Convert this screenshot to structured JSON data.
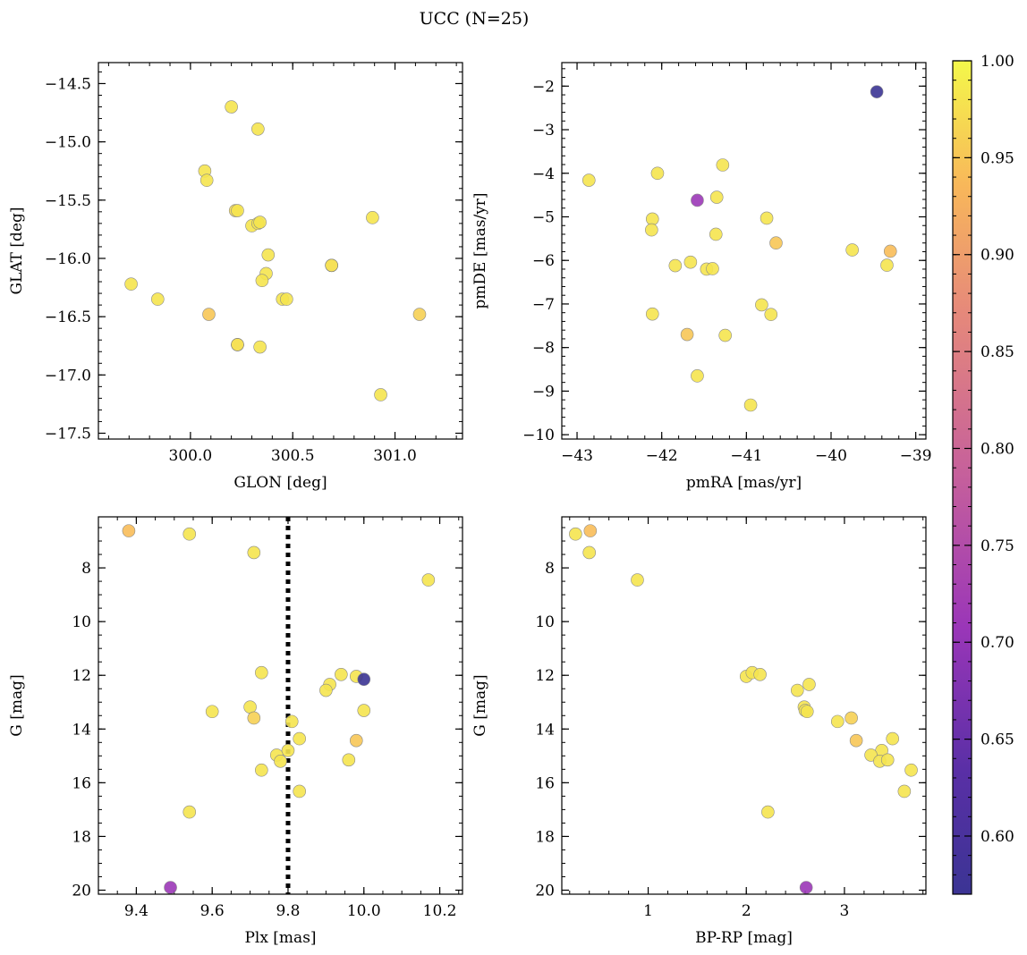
{
  "figure_title": "UCC (N=25)",
  "chart_data": [
    {
      "id": "gal",
      "type": "scatter",
      "xlabel": "GLON [deg]",
      "ylabel": "GLAT [deg]",
      "xlim": [
        299.55,
        301.33
      ],
      "ylim": [
        -17.55,
        -14.32
      ],
      "x_invert": false,
      "y_invert": false,
      "x_ticks": [
        {
          "v": 300.0,
          "l": "300.0"
        },
        {
          "v": 300.5,
          "l": "300.5"
        },
        {
          "v": 301.0,
          "l": "301.0"
        }
      ],
      "x_minor": 0.1,
      "y_ticks": [
        {
          "v": -17.5,
          "l": "−17.5"
        },
        {
          "v": -17.0,
          "l": "−17.0"
        },
        {
          "v": -16.5,
          "l": "−16.5"
        },
        {
          "v": -16.0,
          "l": "−16.0"
        },
        {
          "v": -15.5,
          "l": "−15.5"
        },
        {
          "v": -15.0,
          "l": "−15.0"
        },
        {
          "v": -14.5,
          "l": "−14.5"
        }
      ],
      "y_minor": 0.1,
      "points": [
        {
          "x": 300.2,
          "y": -14.7,
          "c": 0.98
        },
        {
          "x": 300.33,
          "y": -14.89,
          "c": 0.98
        },
        {
          "x": 300.07,
          "y": -15.25,
          "c": 0.98
        },
        {
          "x": 300.08,
          "y": -15.33,
          "c": 0.98
        },
        {
          "x": 300.22,
          "y": -15.59,
          "c": 0.97
        },
        {
          "x": 300.23,
          "y": -15.59,
          "c": 0.98
        },
        {
          "x": 300.3,
          "y": -15.72,
          "c": 0.98
        },
        {
          "x": 300.33,
          "y": -15.7,
          "c": 0.98
        },
        {
          "x": 300.34,
          "y": -15.69,
          "c": 0.98
        },
        {
          "x": 300.89,
          "y": -15.65,
          "c": 0.98
        },
        {
          "x": 300.38,
          "y": -15.97,
          "c": 0.98
        },
        {
          "x": 300.69,
          "y": -16.06,
          "c": 0.97
        },
        {
          "x": 300.37,
          "y": -16.13,
          "c": 0.98
        },
        {
          "x": 300.35,
          "y": -16.19,
          "c": 0.98
        },
        {
          "x": 299.71,
          "y": -16.22,
          "c": 0.98
        },
        {
          "x": 299.84,
          "y": -16.35,
          "c": 0.98
        },
        {
          "x": 300.45,
          "y": -16.35,
          "c": 0.98
        },
        {
          "x": 300.47,
          "y": -16.35,
          "c": 0.98
        },
        {
          "x": 300.09,
          "y": -16.48,
          "c": 0.95
        },
        {
          "x": 301.12,
          "y": -16.48,
          "c": 0.96
        },
        {
          "x": 300.23,
          "y": -16.74,
          "c": 0.97
        },
        {
          "x": 300.34,
          "y": -16.76,
          "c": 0.98
        },
        {
          "x": 300.93,
          "y": -17.17,
          "c": 0.98
        }
      ],
      "overlap_points": [
        {
          "x": 300.69,
          "y": -16.06,
          "c": 0.98
        },
        {
          "x": 300.23,
          "y": -16.74,
          "c": 0.98
        }
      ]
    },
    {
      "id": "pm",
      "type": "scatter",
      "xlabel": "pmRA [mas/yr]",
      "ylabel": "pmDE [mas/yr]",
      "xlim": [
        -43.18,
        -38.88
      ],
      "ylim": [
        -10.1,
        -1.46
      ],
      "x_invert": false,
      "y_invert": false,
      "x_ticks": [
        {
          "v": -43,
          "l": "−43"
        },
        {
          "v": -42,
          "l": "−42"
        },
        {
          "v": -41,
          "l": "−41"
        },
        {
          "v": -40,
          "l": "−40"
        },
        {
          "v": -39,
          "l": "−39"
        }
      ],
      "x_minor": 0.2,
      "y_ticks": [
        {
          "v": -10,
          "l": "−10"
        },
        {
          "v": -9,
          "l": "−9"
        },
        {
          "v": -8,
          "l": "−8"
        },
        {
          "v": -7,
          "l": "−7"
        },
        {
          "v": -6,
          "l": "−6"
        },
        {
          "v": -5,
          "l": "−5"
        },
        {
          "v": -4,
          "l": "−4"
        },
        {
          "v": -3,
          "l": "−3"
        },
        {
          "v": -2,
          "l": "−2"
        }
      ],
      "y_minor": 0.2,
      "points": [
        {
          "x": -39.46,
          "y": -2.13,
          "c": 0.57
        },
        {
          "x": -41.28,
          "y": -3.81,
          "c": 0.98
        },
        {
          "x": -42.86,
          "y": -4.16,
          "c": 0.98
        },
        {
          "x": -42.05,
          "y": -4.0,
          "c": 0.98
        },
        {
          "x": -41.35,
          "y": -4.55,
          "c": 0.98
        },
        {
          "x": -41.58,
          "y": -4.62,
          "c": 0.71
        },
        {
          "x": -42.11,
          "y": -5.05,
          "c": 0.98
        },
        {
          "x": -40.76,
          "y": -5.03,
          "c": 0.98
        },
        {
          "x": -42.12,
          "y": -5.3,
          "c": 0.98
        },
        {
          "x": -41.36,
          "y": -5.4,
          "c": 0.98
        },
        {
          "x": -40.65,
          "y": -5.6,
          "c": 0.95
        },
        {
          "x": -39.75,
          "y": -5.76,
          "c": 0.98
        },
        {
          "x": -39.3,
          "y": -5.79,
          "c": 0.94
        },
        {
          "x": -41.66,
          "y": -6.04,
          "c": 0.98
        },
        {
          "x": -41.84,
          "y": -6.12,
          "c": 0.98
        },
        {
          "x": -39.34,
          "y": -6.11,
          "c": 0.98
        },
        {
          "x": -41.47,
          "y": -6.2,
          "c": 0.98
        },
        {
          "x": -41.4,
          "y": -6.19,
          "c": 0.98
        },
        {
          "x": -40.82,
          "y": -7.02,
          "c": 0.98
        },
        {
          "x": -42.11,
          "y": -7.23,
          "c": 0.98
        },
        {
          "x": -40.71,
          "y": -7.24,
          "c": 0.98
        },
        {
          "x": -41.7,
          "y": -7.7,
          "c": 0.95
        },
        {
          "x": -41.25,
          "y": -7.72,
          "c": 0.98
        },
        {
          "x": -41.58,
          "y": -8.65,
          "c": 0.98
        },
        {
          "x": -40.95,
          "y": -9.32,
          "c": 0.98
        }
      ],
      "overlap_points": []
    },
    {
      "id": "plx",
      "type": "scatter",
      "xlabel": "Plx [mas]",
      "ylabel": "G [mag]",
      "xlim": [
        9.3,
        10.26
      ],
      "ylim": [
        6.1,
        20.15
      ],
      "x_invert": false,
      "y_invert": true,
      "x_ticks": [
        {
          "v": 9.4,
          "l": "9.4"
        },
        {
          "v": 9.6,
          "l": "9.6"
        },
        {
          "v": 9.8,
          "l": "9.8"
        },
        {
          "v": 10.0,
          "l": "10.0"
        },
        {
          "v": 10.2,
          "l": "10.2"
        }
      ],
      "x_minor": 0.05,
      "y_ticks": [
        {
          "v": 8,
          "l": "8"
        },
        {
          "v": 10,
          "l": "10"
        },
        {
          "v": 12,
          "l": "12"
        },
        {
          "v": 14,
          "l": "14"
        },
        {
          "v": 16,
          "l": "16"
        },
        {
          "v": 18,
          "l": "18"
        },
        {
          "v": 20,
          "l": "20"
        }
      ],
      "y_minor": 0.5,
      "vline": 9.8,
      "points": [
        {
          "x": 9.38,
          "y": 6.62,
          "c": 0.94
        },
        {
          "x": 9.54,
          "y": 6.74,
          "c": 0.98
        },
        {
          "x": 9.71,
          "y": 7.43,
          "c": 0.98
        },
        {
          "x": 10.17,
          "y": 8.45,
          "c": 0.98
        },
        {
          "x": 9.73,
          "y": 11.9,
          "c": 0.98
        },
        {
          "x": 9.94,
          "y": 11.97,
          "c": 0.98
        },
        {
          "x": 9.98,
          "y": 12.04,
          "c": 0.98
        },
        {
          "x": 10.0,
          "y": 12.15,
          "c": 0.57
        },
        {
          "x": 9.91,
          "y": 12.34,
          "c": 0.98
        },
        {
          "x": 9.9,
          "y": 12.56,
          "c": 0.98
        },
        {
          "x": 9.7,
          "y": 13.18,
          "c": 0.98
        },
        {
          "x": 10.0,
          "y": 13.31,
          "c": 0.98
        },
        {
          "x": 9.6,
          "y": 13.35,
          "c": 0.98
        },
        {
          "x": 9.71,
          "y": 13.59,
          "c": 0.96
        },
        {
          "x": 9.81,
          "y": 13.72,
          "c": 0.98
        },
        {
          "x": 9.83,
          "y": 14.36,
          "c": 0.98
        },
        {
          "x": 9.98,
          "y": 14.43,
          "c": 0.95
        },
        {
          "x": 9.8,
          "y": 14.8,
          "c": 0.98
        },
        {
          "x": 9.77,
          "y": 14.97,
          "c": 0.98
        },
        {
          "x": 9.96,
          "y": 15.15,
          "c": 0.98
        },
        {
          "x": 9.78,
          "y": 15.2,
          "c": 0.98
        },
        {
          "x": 9.73,
          "y": 15.53,
          "c": 0.98
        },
        {
          "x": 9.83,
          "y": 16.32,
          "c": 0.98
        },
        {
          "x": 9.54,
          "y": 17.09,
          "c": 0.98
        },
        {
          "x": 9.49,
          "y": 19.9,
          "c": 0.71
        }
      ],
      "overlap_points": []
    },
    {
      "id": "cmd",
      "type": "scatter",
      "xlabel": "BP-RP [mag]",
      "ylabel": "G [mag]",
      "xlim": [
        0.12,
        3.83
      ],
      "ylim": [
        6.1,
        20.15
      ],
      "x_invert": false,
      "y_invert": true,
      "x_ticks": [
        {
          "v": 1,
          "l": "1"
        },
        {
          "v": 2,
          "l": "2"
        },
        {
          "v": 3,
          "l": "3"
        }
      ],
      "x_minor": 0.2,
      "y_ticks": [
        {
          "v": 8,
          "l": "8"
        },
        {
          "v": 10,
          "l": "10"
        },
        {
          "v": 12,
          "l": "12"
        },
        {
          "v": 14,
          "l": "14"
        },
        {
          "v": 16,
          "l": "16"
        },
        {
          "v": 18,
          "l": "18"
        },
        {
          "v": 20,
          "l": "20"
        }
      ],
      "y_minor": 0.5,
      "points": [
        {
          "x": 0.26,
          "y": 6.74,
          "c": 0.98
        },
        {
          "x": 0.41,
          "y": 6.62,
          "c": 0.94
        },
        {
          "x": 0.4,
          "y": 7.43,
          "c": 0.98
        },
        {
          "x": 0.89,
          "y": 8.45,
          "c": 0.98
        },
        {
          "x": 2.0,
          "y": 12.04,
          "c": 0.98
        },
        {
          "x": 2.06,
          "y": 11.9,
          "c": 0.98
        },
        {
          "x": 2.14,
          "y": 11.97,
          "c": 0.98
        },
        {
          "x": 2.52,
          "y": 12.56,
          "c": 0.98
        },
        {
          "x": 2.64,
          "y": 12.34,
          "c": 0.98
        },
        {
          "x": 2.59,
          "y": 13.18,
          "c": 0.98
        },
        {
          "x": 2.6,
          "y": 13.31,
          "c": 0.98
        },
        {
          "x": 2.62,
          "y": 13.35,
          "c": 0.98
        },
        {
          "x": 2.93,
          "y": 13.72,
          "c": 0.98
        },
        {
          "x": 3.07,
          "y": 13.59,
          "c": 0.96
        },
        {
          "x": 3.12,
          "y": 14.43,
          "c": 0.95
        },
        {
          "x": 3.49,
          "y": 14.36,
          "c": 0.98
        },
        {
          "x": 3.38,
          "y": 14.8,
          "c": 0.98
        },
        {
          "x": 3.27,
          "y": 14.97,
          "c": 0.98
        },
        {
          "x": 3.36,
          "y": 15.2,
          "c": 0.98
        },
        {
          "x": 3.44,
          "y": 15.15,
          "c": 0.98
        },
        {
          "x": 3.68,
          "y": 15.53,
          "c": 0.98
        },
        {
          "x": 3.61,
          "y": 16.32,
          "c": 0.98
        },
        {
          "x": 2.22,
          "y": 17.09,
          "c": 0.98
        },
        {
          "x": 2.61,
          "y": 19.9,
          "c": 0.71
        }
      ],
      "overlap_points": []
    }
  ],
  "colorbar": {
    "colormap": "plasma",
    "vmin": 0.57,
    "vmax": 1.0,
    "ticks": [
      {
        "v": 0.6,
        "l": "0.60"
      },
      {
        "v": 0.65,
        "l": "0.65"
      },
      {
        "v": 0.7,
        "l": "0.70"
      },
      {
        "v": 0.75,
        "l": "0.75"
      },
      {
        "v": 0.8,
        "l": "0.80"
      },
      {
        "v": 0.85,
        "l": "0.85"
      },
      {
        "v": 0.9,
        "l": "0.90"
      },
      {
        "v": 0.95,
        "l": "0.95"
      },
      {
        "v": 1.0,
        "l": "1.00"
      }
    ],
    "minor": 0.01
  }
}
